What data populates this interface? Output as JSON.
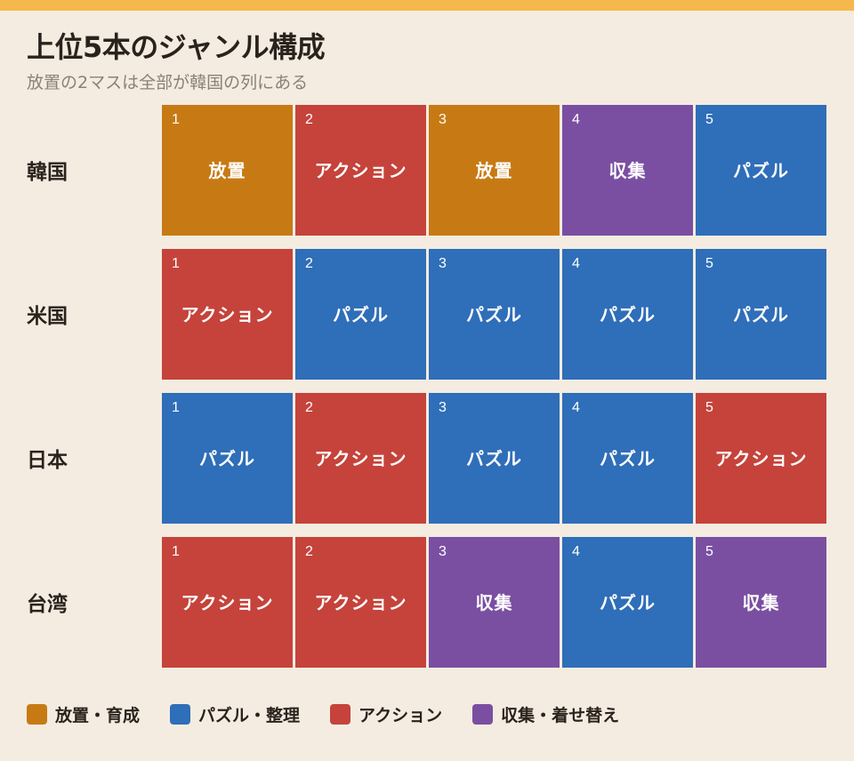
{
  "title": "上位5本のジャンル構成",
  "subtitle": "放置の2マスは全部が韓国の列にある",
  "colors": {
    "top_bar": "#f5b84a",
    "background": "#f4ece1",
    "放置・育成": "#c77a14",
    "パズル・整理": "#2f6eb8",
    "アクション": "#c5433b",
    "収集・着せ替え": "#7a4fa2"
  },
  "chart_data": {
    "type": "table",
    "ranks": [
      "1",
      "2",
      "3",
      "4",
      "5"
    ],
    "rows": [
      {
        "country": "韓国",
        "cells": [
          {
            "genre": "放置",
            "category": "放置・育成"
          },
          {
            "genre": "アクション",
            "category": "アクション"
          },
          {
            "genre": "放置",
            "category": "放置・育成"
          },
          {
            "genre": "収集",
            "category": "収集・着せ替え"
          },
          {
            "genre": "パズル",
            "category": "パズル・整理"
          }
        ]
      },
      {
        "country": "米国",
        "cells": [
          {
            "genre": "アクション",
            "category": "アクション"
          },
          {
            "genre": "パズル",
            "category": "パズル・整理"
          },
          {
            "genre": "パズル",
            "category": "パズル・整理"
          },
          {
            "genre": "パズル",
            "category": "パズル・整理"
          },
          {
            "genre": "パズル",
            "category": "パズル・整理"
          }
        ]
      },
      {
        "country": "日本",
        "cells": [
          {
            "genre": "パズル",
            "category": "パズル・整理"
          },
          {
            "genre": "アクション",
            "category": "アクション"
          },
          {
            "genre": "パズル",
            "category": "パズル・整理"
          },
          {
            "genre": "パズル",
            "category": "パズル・整理"
          },
          {
            "genre": "アクション",
            "category": "アクション"
          }
        ]
      },
      {
        "country": "台湾",
        "cells": [
          {
            "genre": "アクション",
            "category": "アクション"
          },
          {
            "genre": "アクション",
            "category": "アクション"
          },
          {
            "genre": "収集",
            "category": "収集・着せ替え"
          },
          {
            "genre": "パズル",
            "category": "パズル・整理"
          },
          {
            "genre": "収集",
            "category": "収集・着せ替え"
          }
        ]
      }
    ],
    "legend": [
      "放置・育成",
      "パズル・整理",
      "アクション",
      "収集・着せ替え"
    ]
  }
}
